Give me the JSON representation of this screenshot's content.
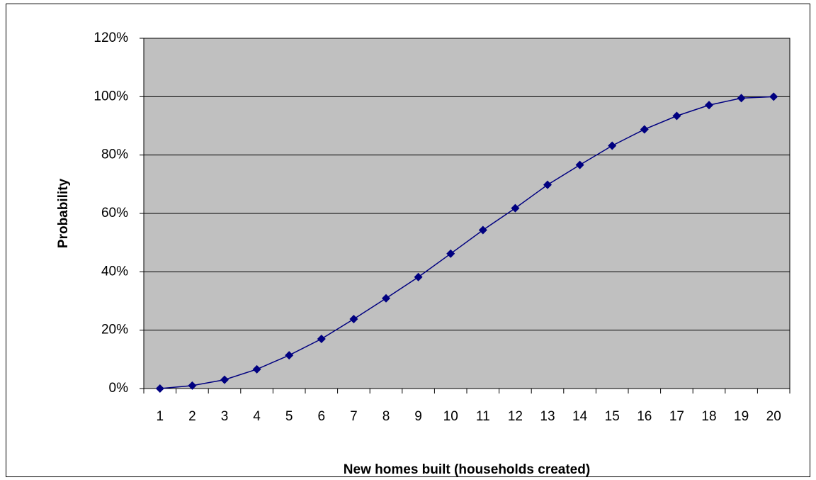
{
  "chart_data": {
    "type": "line",
    "x_label": "New homes built (households created)",
    "y_label": "Probability",
    "categories": [
      "1",
      "2",
      "3",
      "4",
      "5",
      "6",
      "7",
      "8",
      "9",
      "10",
      "11",
      "12",
      "13",
      "14",
      "15",
      "16",
      "17",
      "18",
      "19",
      "20"
    ],
    "series": [
      {
        "name": "Probability",
        "color": "#000080",
        "values": [
          0,
          1,
          3,
          6.6,
          11.4,
          17,
          23.8,
          30.9,
          38.2,
          46.2,
          54.3,
          61.8,
          69.8,
          76.6,
          83.2,
          88.8,
          93.4,
          97.1,
          99.5,
          100
        ]
      }
    ],
    "ylim": [
      0,
      120
    ],
    "yticks": [
      {
        "value": 0,
        "label": "0%"
      },
      {
        "value": 20,
        "label": "20%"
      },
      {
        "value": 40,
        "label": "40%"
      },
      {
        "value": 60,
        "label": "60%"
      },
      {
        "value": 80,
        "label": "80%"
      },
      {
        "value": 100,
        "label": "100%"
      },
      {
        "value": 120,
        "label": "120%"
      }
    ],
    "grid": true,
    "plot_background": "#c0c0c0"
  }
}
